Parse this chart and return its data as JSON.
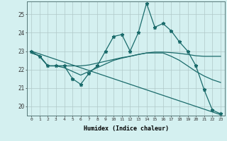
{
  "xlabel": "Humidex (Indice chaleur)",
  "background_color": "#d4f0f0",
  "grid_color": "#b0c8c8",
  "line_color": "#1a6b6b",
  "xlim": [
    -0.5,
    23.5
  ],
  "ylim": [
    19.5,
    25.7
  ],
  "yticks": [
    20,
    21,
    22,
    23,
    24,
    25
  ],
  "xticks": [
    0,
    1,
    2,
    3,
    4,
    5,
    6,
    7,
    8,
    9,
    10,
    11,
    12,
    13,
    14,
    15,
    16,
    17,
    18,
    19,
    20,
    21,
    22,
    23
  ],
  "series": [
    {
      "x": [
        0,
        1,
        2,
        3,
        4,
        5,
        6,
        7,
        8,
        9,
        10,
        11,
        12,
        13,
        14,
        15,
        16,
        17,
        18,
        19,
        20,
        21,
        22,
        23
      ],
      "y": [
        23.0,
        22.7,
        22.2,
        22.2,
        22.2,
        21.5,
        21.2,
        21.8,
        22.2,
        23.0,
        23.8,
        23.9,
        23.0,
        24.0,
        25.6,
        24.3,
        24.5,
        24.1,
        23.5,
        23.0,
        22.2,
        20.9,
        19.8,
        19.6
      ],
      "marker": "*",
      "markersize": 3.5,
      "linewidth": 0.9
    },
    {
      "x": [
        0,
        1,
        2,
        3,
        4,
        5,
        6,
        7,
        8,
        9,
        10,
        11,
        12,
        13,
        14,
        15,
        16,
        17,
        18,
        19,
        20,
        21,
        22,
        23
      ],
      "y": [
        22.9,
        22.75,
        22.2,
        22.2,
        22.2,
        22.2,
        22.2,
        22.25,
        22.35,
        22.45,
        22.55,
        22.65,
        22.72,
        22.82,
        22.9,
        22.95,
        22.95,
        22.92,
        22.88,
        22.82,
        22.75,
        22.72,
        22.72,
        22.72
      ],
      "marker": null,
      "markersize": 0,
      "linewidth": 0.9
    },
    {
      "x": [
        0,
        1,
        2,
        3,
        4,
        5,
        6,
        7,
        8,
        9,
        10,
        11,
        12,
        13,
        14,
        15,
        16,
        17,
        18,
        19,
        20,
        21,
        22,
        23
      ],
      "y": [
        22.9,
        22.75,
        22.2,
        22.2,
        22.1,
        21.9,
        21.7,
        21.9,
        22.1,
        22.3,
        22.5,
        22.62,
        22.72,
        22.82,
        22.9,
        22.9,
        22.9,
        22.72,
        22.5,
        22.2,
        21.9,
        21.65,
        21.45,
        21.3
      ],
      "marker": null,
      "markersize": 0,
      "linewidth": 0.9
    },
    {
      "x": [
        0,
        23
      ],
      "y": [
        23.0,
        19.55
      ],
      "marker": null,
      "markersize": 0,
      "linewidth": 0.9
    }
  ]
}
